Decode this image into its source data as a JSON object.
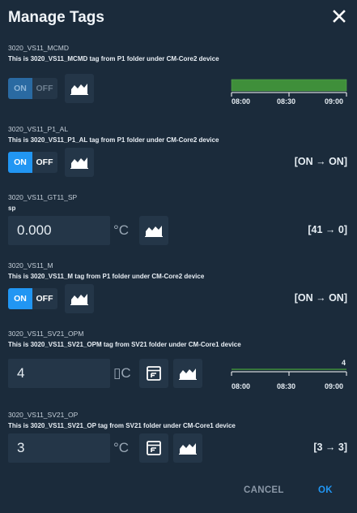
{
  "dialog": {
    "title": "Manage Tags",
    "close_icon": "close-icon"
  },
  "tags": [
    {
      "name": "3020_VS11_MCMD",
      "description": "This is 3020_VS11_MCMD tag from P1 folder under CM-Core2 device",
      "control": "toggle",
      "on_label": "ON",
      "off_label": "OFF",
      "state": "on",
      "state_disabled": true,
      "trend_icon": "trend-chart-icon",
      "trend": {
        "ticks": [
          "08:00",
          "08:30",
          "09:00"
        ],
        "bar_color": "#3f8f3a"
      }
    },
    {
      "name": "3020_VS11_P1_AL",
      "description": "This is 3020_VS11_P1_AL tag from P1 folder under CM-Core2 device",
      "control": "toggle",
      "on_label": "ON",
      "off_label": "OFF",
      "state": "on",
      "trend_icon": "trend-chart-icon",
      "transition": "[ON → ON]"
    },
    {
      "name": "3020_VS11_GT11_SP",
      "description": "sp",
      "control": "number",
      "value": "0.000",
      "unit": "°C",
      "trend_icon": "trend-chart-icon",
      "transition": "[41 → 0]"
    },
    {
      "name": "3020_VS11_M",
      "description": "This is 3020_VS11_M tag from P1 folder under CM-Core2 device",
      "control": "toggle",
      "on_label": "ON",
      "off_label": "OFF",
      "state": "on",
      "trend_icon": "trend-chart-icon",
      "transition": "[ON → ON]"
    },
    {
      "name": "3020_VS11_SV21_OPM",
      "description": "This is 3020_VS11_SV21_OPM tag from SV21 folder under CM-Core1 device",
      "control": "number",
      "value": "4",
      "unit": "▯C",
      "faceplate_icon": "faceplate-icon",
      "trend_icon": "trend-chart-icon",
      "trend": {
        "ticks": [
          "08:00",
          "08:30",
          "09:00"
        ],
        "last_value": "4",
        "line_color": "#3f8f3a"
      }
    },
    {
      "name": "3020_VS11_SV21_OP",
      "description": "This is 3020_VS11_SV21_OP tag from SV21 folder under CM-Core1 device",
      "control": "number",
      "value": "3",
      "unit": "°C",
      "faceplate_icon": "faceplate-icon",
      "trend_icon": "trend-chart-icon",
      "transition": "[3 → 3]"
    }
  ],
  "footer": {
    "cancel_label": "CANCEL",
    "ok_label": "OK"
  },
  "colors": {
    "background": "#1b2b3b",
    "field": "#243648",
    "accent": "#2196f3",
    "trend_green": "#3f8f3a"
  }
}
